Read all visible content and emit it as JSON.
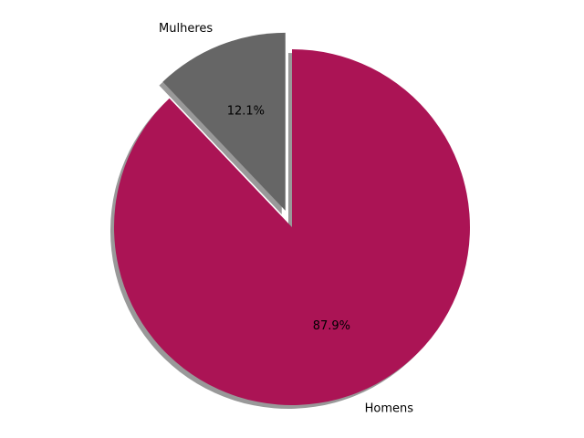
{
  "chart_data": {
    "type": "pie",
    "title": "",
    "categories": [
      "Homens",
      "Mulheres"
    ],
    "values": [
      87.9,
      12.1
    ],
    "percent_labels": [
      "87.9%",
      "12.1%"
    ],
    "colors": [
      "#AB1455",
      "#666666"
    ],
    "explode": [
      0,
      0.1
    ],
    "shadow": true,
    "start_angle_deg": 90,
    "direction": "clockwise",
    "legend": "none"
  }
}
